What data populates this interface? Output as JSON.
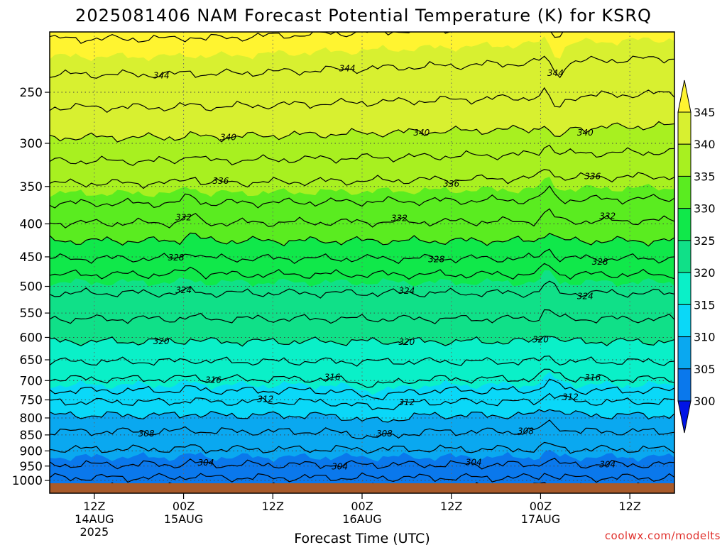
{
  "chart_data": {
    "type": "contour",
    "title": "2025081406 NAM Forecast Potential Temperature (K) for KSRQ",
    "xlabel": "Forecast Time (UTC)",
    "ylabel": "",
    "x_ticks": [
      {
        "label": "12Z",
        "sub": [
          "14AUG",
          "2025"
        ],
        "hours": 6
      },
      {
        "label": "00Z",
        "sub": [
          "15AUG"
        ],
        "hours": 18
      },
      {
        "label": "12Z",
        "sub": [],
        "hours": 30
      },
      {
        "label": "00Z",
        "sub": [
          "16AUG"
        ],
        "hours": 42
      },
      {
        "label": "12Z",
        "sub": [],
        "hours": 54
      },
      {
        "label": "00Z",
        "sub": [
          "17AUG"
        ],
        "hours": 66
      },
      {
        "label": "12Z",
        "sub": [],
        "hours": 78
      }
    ],
    "xlim_hours": [
      0,
      84
    ],
    "y_ticks": [
      250,
      300,
      350,
      400,
      450,
      500,
      550,
      600,
      650,
      700,
      750,
      800,
      850,
      900,
      950,
      1000
    ],
    "ylim_hPa": [
      200,
      1013
    ],
    "y_scale": "log-pressure",
    "grid": "dotted",
    "colorbar": {
      "ticks": [
        345,
        340,
        335,
        330,
        325,
        320,
        315,
        310,
        305,
        300
      ],
      "levels": [
        300,
        305,
        310,
        315,
        320,
        325,
        330,
        335,
        340,
        345
      ],
      "colors": [
        "#0014e6",
        "#0050e8",
        "#0a78ec",
        "#0aa8f0",
        "#0ad8f8",
        "#0af0c8",
        "#10e088",
        "#10e84a",
        "#5aec20",
        "#a8f020",
        "#d8f030",
        "#fff430"
      ],
      "extend": "both"
    },
    "contour_lines_K": [
      300,
      302,
      304,
      306,
      308,
      310,
      312,
      314,
      316,
      318,
      320,
      322,
      324,
      326,
      328,
      330,
      332,
      334,
      336,
      338,
      340,
      342,
      344,
      346
    ],
    "profile_hPa": [
      1013,
      950,
      900,
      850,
      800,
      750,
      700,
      650,
      600,
      550,
      500,
      450,
      400,
      350,
      300,
      250,
      200
    ],
    "profile_theta_K": [
      301,
      303.8,
      305.8,
      307.6,
      309.6,
      312.3,
      315.8,
      318.2,
      320.4,
      322.5,
      324.5,
      328.2,
      331.9,
      335.7,
      339.6,
      343,
      346.5
    ],
    "contour_labels": [
      {
        "v": 304,
        "t": 21
      },
      {
        "v": 304,
        "t": 39
      },
      {
        "v": 304,
        "t": 57
      },
      {
        "v": 304,
        "t": 75
      },
      {
        "v": 308,
        "t": 13
      },
      {
        "v": 308,
        "t": 45
      },
      {
        "v": 308,
        "t": 64
      },
      {
        "v": 312,
        "t": 29
      },
      {
        "v": 312,
        "t": 48
      },
      {
        "v": 312,
        "t": 70
      },
      {
        "v": 316,
        "t": 22
      },
      {
        "v": 316,
        "t": 38
      },
      {
        "v": 316,
        "t": 73
      },
      {
        "v": 320,
        "t": 15
      },
      {
        "v": 320,
        "t": 48
      },
      {
        "v": 320,
        "t": 66
      },
      {
        "v": 324,
        "t": 18
      },
      {
        "v": 324,
        "t": 48
      },
      {
        "v": 324,
        "t": 72
      },
      {
        "v": 328,
        "t": 17
      },
      {
        "v": 328,
        "t": 52
      },
      {
        "v": 328,
        "t": 74
      },
      {
        "v": 332,
        "t": 18
      },
      {
        "v": 332,
        "t": 47
      },
      {
        "v": 332,
        "t": 75
      },
      {
        "v": 336,
        "t": 23
      },
      {
        "v": 336,
        "t": 54
      },
      {
        "v": 336,
        "t": 73
      },
      {
        "v": 340,
        "t": 24
      },
      {
        "v": 340,
        "t": 50
      },
      {
        "v": 340,
        "t": 72
      },
      {
        "v": 344,
        "t": 15
      },
      {
        "v": 344,
        "t": 40
      },
      {
        "v": 344,
        "t": 68
      }
    ],
    "ground_color": "#a85a2a"
  },
  "credit": "coolwx.com/modelts"
}
